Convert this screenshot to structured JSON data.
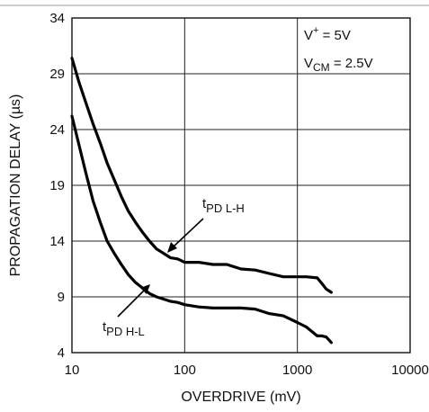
{
  "chart_data": {
    "type": "line",
    "xlabel": "OVERDRIVE (mV)",
    "ylabel": "PROPAGATION DELAY (µs)",
    "x_scale": "log",
    "xlim": [
      10,
      10000
    ],
    "ylim": [
      4,
      34
    ],
    "x_ticks": [
      10,
      100,
      1000,
      10000
    ],
    "x_tick_labels": [
      "10",
      "100",
      "1000",
      "10000"
    ],
    "y_ticks": [
      4,
      9,
      14,
      19,
      24,
      29,
      34
    ],
    "y_tick_labels": [
      "4",
      "9",
      "14",
      "19",
      "24",
      "29",
      "34"
    ],
    "grid": true,
    "conditions": [
      {
        "base": "V",
        "sup": "+",
        "rest": " = 5V"
      },
      {
        "base": "V",
        "sub": "CM",
        "rest": " = 2.5V"
      }
    ],
    "series": [
      {
        "name": "tPD L-H",
        "label": {
          "base": "t",
          "sub": "PD L-H"
        },
        "x": [
          10,
          11.5,
          13.3,
          15.4,
          17.8,
          20.5,
          23.7,
          27.4,
          31.6,
          36.5,
          42.2,
          48.7,
          56.2,
          65,
          75,
          86.6,
          100,
          133,
          178,
          237,
          316,
          422,
          562,
          750,
          1000,
          1200,
          1500,
          1650,
          1800,
          2000
        ],
        "y": [
          30.4,
          28.3,
          26.4,
          24.5,
          22.8,
          21.0,
          19.5,
          18.0,
          16.7,
          15.7,
          14.8,
          14.0,
          13.3,
          12.9,
          12.5,
          12.4,
          12.1,
          12.1,
          11.9,
          11.9,
          11.5,
          11.4,
          11.1,
          10.8,
          10.8,
          10.8,
          10.7,
          10.2,
          9.7,
          9.4
        ]
      },
      {
        "name": "tPD H-L",
        "label": {
          "base": "t",
          "sub": "PD H-L"
        },
        "x": [
          10,
          11.5,
          13.3,
          15.4,
          17.8,
          20.5,
          23.7,
          27.4,
          31.6,
          36.5,
          42.2,
          48.7,
          56.2,
          65,
          75,
          86.6,
          100,
          133,
          178,
          237,
          316,
          422,
          562,
          750,
          1000,
          1200,
          1500,
          1650,
          1800,
          2000
        ],
        "y": [
          25.2,
          22.7,
          20.1,
          17.6,
          15.7,
          14.0,
          12.9,
          11.9,
          11.0,
          10.3,
          9.8,
          9.3,
          9.0,
          8.8,
          8.6,
          8.5,
          8.3,
          8.1,
          8.0,
          8.0,
          8.0,
          7.9,
          7.5,
          7.3,
          6.7,
          6.3,
          5.5,
          5.5,
          5.4,
          4.9
        ]
      }
    ]
  }
}
